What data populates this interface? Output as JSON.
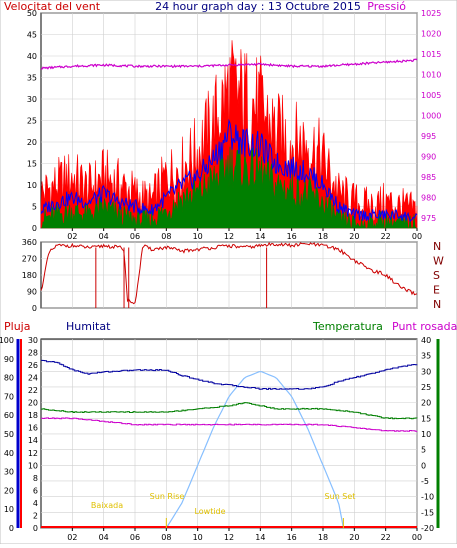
{
  "header": {
    "left_label": "Velocitat del vent",
    "center_title": "24 hour graph day : 13 Octubre 2015",
    "right_label": "Pressió"
  },
  "colors": {
    "wind_red": "#ff0000",
    "wind_green": "#007f00",
    "wind_blue": "#0000ff",
    "pressure": "#cc00cc",
    "dir_red": "#cc0000",
    "humidity": "#0000a0",
    "temperature": "#007f00",
    "dewpoint": "#cc00cc",
    "rain": "#ff0000",
    "solar": "#87bfff",
    "grid": "#d0d0d0",
    "axis_dark": "#800000",
    "blue_axis": "#0000cc",
    "green_axis": "#007f00",
    "label_yellow": "#e0c000"
  },
  "chart_data": [
    {
      "type": "line",
      "name": "wind-pressure",
      "x_ticks": [
        "02",
        "04",
        "06",
        "08",
        "10",
        "12",
        "14",
        "16",
        "18",
        "20",
        "22",
        "00"
      ],
      "y_left_ticks": [
        0,
        5,
        10,
        15,
        20,
        25,
        30,
        35,
        40,
        45,
        50
      ],
      "y_right_ticks": [
        975,
        980,
        985,
        990,
        995,
        1000,
        1005,
        1010,
        1015,
        1020,
        1025
      ],
      "ylim_left": [
        0,
        50
      ],
      "ylim_right": [
        972.5,
        1025
      ],
      "x_range_hours": [
        0,
        24
      ],
      "series": [
        {
          "name": "Velocitat del vent",
          "key": "gust",
          "hours": [
            0,
            1,
            2,
            3,
            4,
            5,
            6,
            7,
            8,
            9,
            10,
            11,
            12,
            13,
            14,
            15,
            16,
            17,
            18,
            19,
            20,
            21,
            22,
            23,
            24
          ],
          "values": [
            8,
            10,
            12,
            9,
            12,
            10,
            8,
            6,
            12,
            14,
            18,
            24,
            32,
            30,
            28,
            22,
            20,
            20,
            16,
            8,
            6,
            5,
            6,
            5,
            4
          ]
        },
        {
          "key": "avg",
          "hours": [
            0,
            1,
            2,
            3,
            4,
            5,
            6,
            7,
            8,
            9,
            10,
            11,
            12,
            13,
            14,
            15,
            16,
            17,
            18,
            19,
            20,
            21,
            22,
            23,
            24
          ],
          "values": [
            4,
            6,
            7,
            6,
            8,
            6,
            5,
            4,
            7,
            10,
            12,
            16,
            22,
            20,
            19,
            15,
            14,
            13,
            10,
            5,
            3,
            3,
            3,
            3,
            2
          ]
        },
        {
          "key": "low",
          "hours": [
            0,
            1,
            2,
            3,
            4,
            5,
            6,
            7,
            8,
            9,
            10,
            11,
            12,
            13,
            14,
            15,
            16,
            17,
            18,
            19,
            20,
            21,
            22,
            23,
            24
          ],
          "values": [
            2,
            3,
            4,
            3,
            5,
            3,
            2,
            2,
            4,
            7,
            8,
            11,
            15,
            14,
            13,
            10,
            9,
            8,
            6,
            2,
            1,
            1,
            2,
            1,
            1
          ]
        },
        {
          "name": "Pressió",
          "key": "pressure",
          "hours": [
            0,
            2,
            4,
            6,
            8,
            10,
            12,
            14,
            16,
            18,
            20,
            22,
            24
          ],
          "values": [
            1011.5,
            1012,
            1012.3,
            1012,
            1012,
            1012,
            1012.3,
            1012.5,
            1012,
            1012,
            1012.5,
            1013,
            1013.5
          ]
        }
      ]
    },
    {
      "type": "line",
      "name": "wind-direction",
      "y_left_ticks": [
        0,
        90,
        180,
        270,
        360
      ],
      "ylim": [
        0,
        360
      ],
      "direction_labels": [
        "N",
        "W",
        "S",
        "E",
        "N"
      ],
      "hours": [
        0,
        0.5,
        1,
        2,
        3,
        3.5,
        4,
        5,
        5.3,
        5.5,
        6,
        6.5,
        7,
        8,
        9,
        10,
        11,
        12,
        13,
        14,
        15,
        16,
        17,
        18,
        19,
        19.5,
        20,
        21,
        22,
        23,
        24
      ],
      "values": [
        90,
        300,
        340,
        340,
        330,
        330,
        340,
        330,
        320,
        50,
        20,
        340,
        320,
        330,
        310,
        320,
        330,
        340,
        330,
        340,
        350,
        340,
        350,
        340,
        320,
        290,
        260,
        210,
        180,
        110,
        70
      ]
    },
    {
      "type": "line",
      "name": "humidity-temperature-rain",
      "legend": [
        "Pluja",
        "Humitat",
        "Temperatura",
        "Punt rosada"
      ],
      "rain_ticks": [
        0,
        10,
        20,
        30,
        40,
        50,
        60,
        70,
        80,
        90,
        100
      ],
      "humidity_ticks": [
        0,
        2,
        4,
        6,
        8,
        10,
        12,
        14,
        16,
        18,
        20,
        22,
        24,
        26,
        28,
        30
      ],
      "temp_ticks": [
        -20,
        -15,
        -10,
        -5,
        0,
        5,
        10,
        15,
        20,
        25,
        30,
        35,
        40
      ],
      "annotations": [
        "Baixada",
        "Sun Rise",
        "Sun Set",
        "Lowtide"
      ],
      "series": [
        {
          "name": "Humitat",
          "key": "humidity",
          "hours": [
            0,
            1,
            2,
            3,
            4,
            6,
            8,
            9,
            10,
            11,
            12,
            13,
            14,
            15,
            16,
            17,
            18,
            19,
            20,
            21,
            22,
            23,
            24
          ],
          "values": [
            89,
            88,
            84,
            82,
            83,
            84,
            84,
            81,
            79,
            77,
            76,
            75,
            74,
            74,
            74,
            74,
            75,
            78,
            80,
            82,
            84,
            86,
            87
          ]
        },
        {
          "name": "Temperatura",
          "key": "temperature",
          "hours": [
            0,
            2,
            4,
            6,
            8,
            10,
            12,
            13,
            14,
            15,
            16,
            18,
            20,
            22,
            24
          ],
          "values": [
            18,
            17,
            17,
            17,
            17,
            18,
            19,
            20,
            19,
            18,
            18,
            18,
            17,
            15,
            15
          ]
        },
        {
          "name": "Punt rosada",
          "key": "dewpoint",
          "hours": [
            0,
            2,
            4,
            6,
            8,
            10,
            12,
            14,
            16,
            18,
            20,
            22,
            24
          ],
          "values": [
            15,
            15,
            14,
            13,
            13,
            13,
            13,
            13,
            13,
            13,
            12,
            11,
            11
          ]
        },
        {
          "name": "Pluja",
          "key": "rain",
          "hours": [
            0,
            24
          ],
          "values": [
            0,
            0
          ]
        },
        {
          "key": "solar",
          "hours": [
            8,
            9,
            10,
            11,
            12,
            13,
            14,
            15,
            16,
            17,
            18,
            19,
            19.3
          ],
          "values": [
            0,
            4,
            10,
            16,
            21,
            24,
            25,
            24,
            21,
            16,
            10,
            4,
            0
          ]
        }
      ]
    }
  ]
}
